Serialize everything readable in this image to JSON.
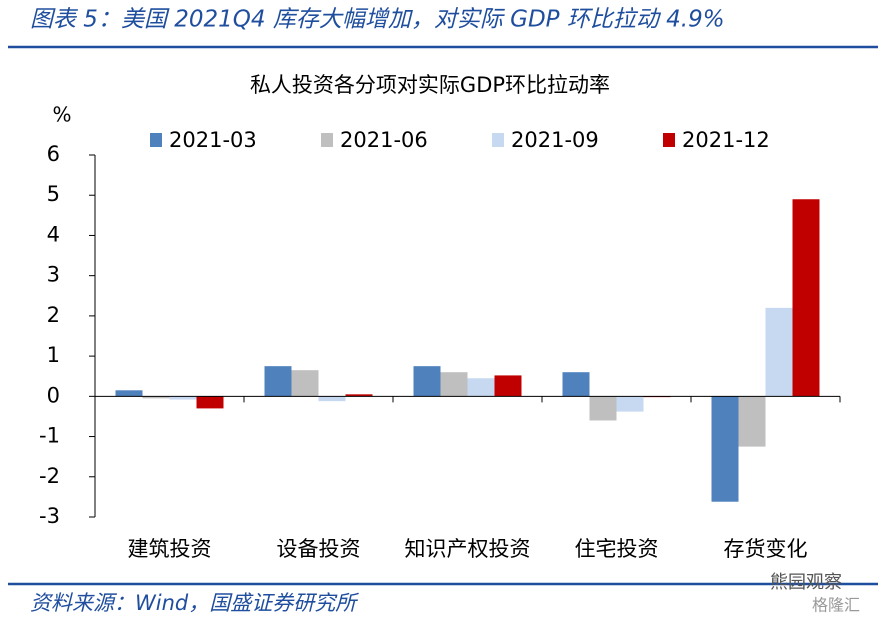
{
  "header": {
    "title": "图表 5：美国 2021Q4 库存大幅增加，对实际 GDP 环比拉动 4.9%"
  },
  "chart_data": {
    "type": "bar",
    "title": "私人投资各分项对实际GDP环比拉动率",
    "y_label": "%",
    "categories": [
      "建筑投资",
      "设备投资",
      "知识产权投资",
      "住宅投资",
      "存货变化"
    ],
    "series": [
      {
        "name": "2021-03",
        "color": "#4f81bd",
        "values": [
          0.15,
          0.75,
          0.75,
          0.6,
          -2.62
        ]
      },
      {
        "name": "2021-06",
        "color": "#bfbfbf",
        "values": [
          -0.05,
          0.65,
          0.6,
          -0.6,
          -1.25
        ]
      },
      {
        "name": "2021-09",
        "color": "#c6d9f1",
        "values": [
          -0.08,
          -0.12,
          0.45,
          -0.38,
          2.2
        ]
      },
      {
        "name": "2021-12",
        "color": "#c00000",
        "values": [
          -0.3,
          0.05,
          0.52,
          -0.02,
          4.9
        ]
      }
    ],
    "ylim": [
      -3,
      6
    ],
    "yticks": [
      -3,
      -2,
      -1,
      0,
      1,
      2,
      3,
      4,
      5,
      6
    ],
    "grid": false
  },
  "footer": {
    "source": "资料来源：Wind，国盛证券研究所",
    "watermark": [
      "熊园观察",
      "格隆汇"
    ]
  }
}
